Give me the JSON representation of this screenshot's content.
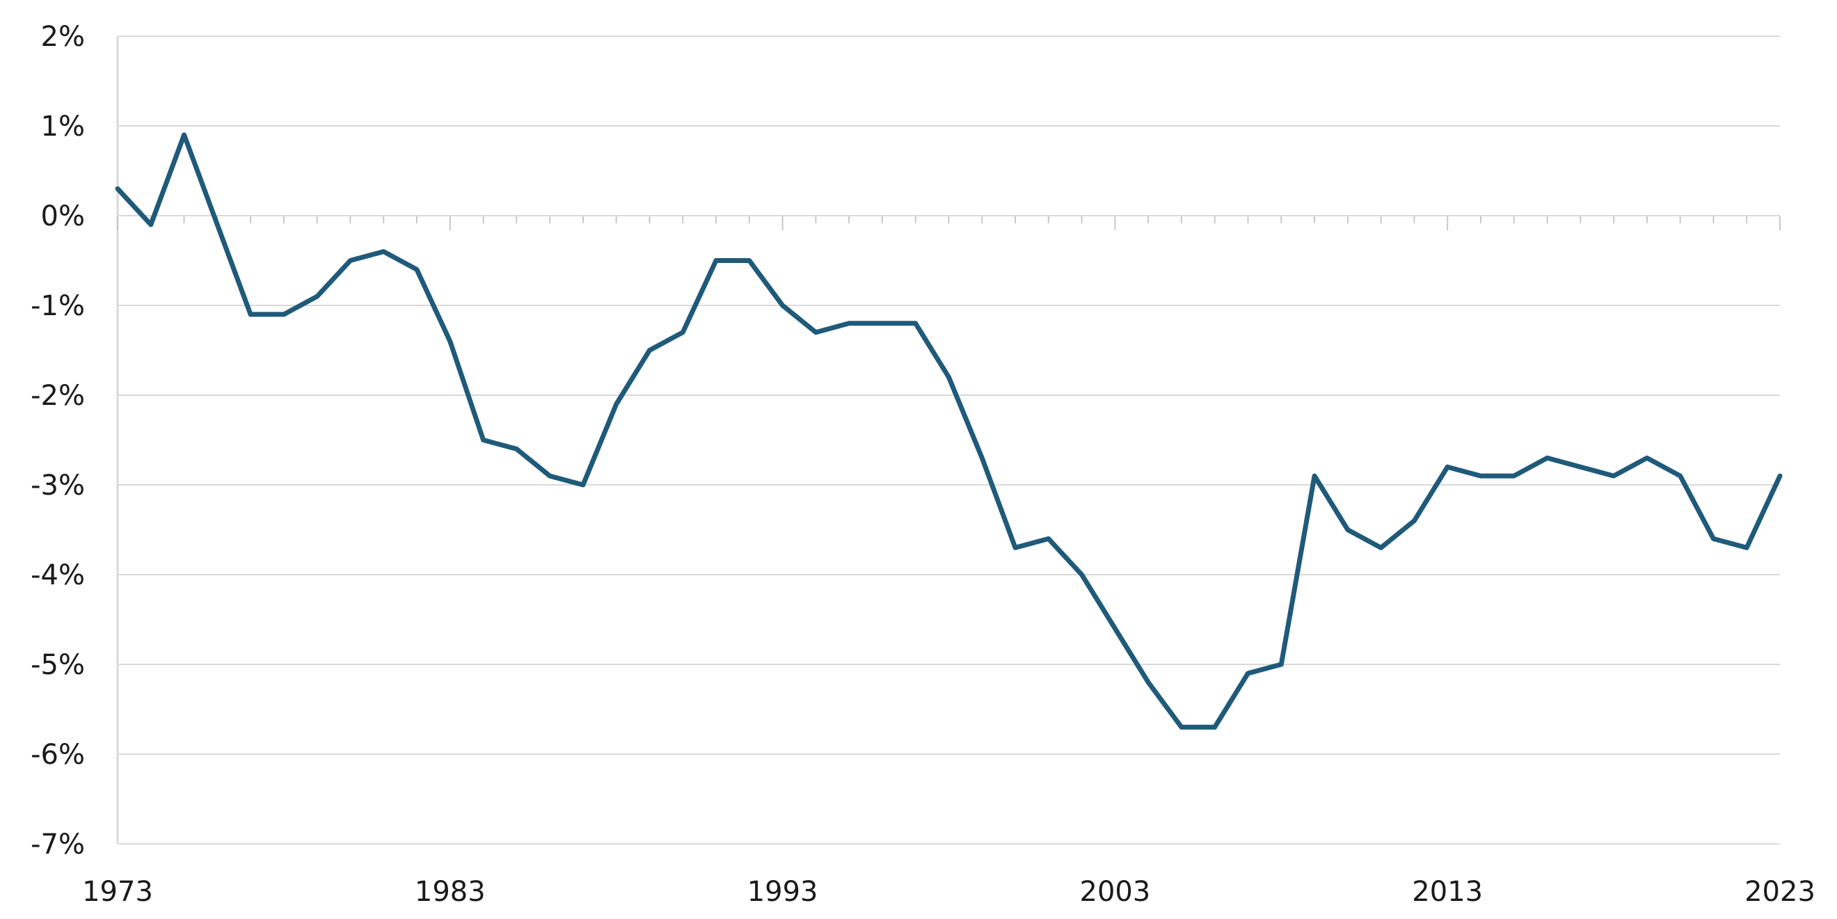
{
  "chart_data": {
    "type": "line",
    "title": "",
    "xlabel": "",
    "ylabel": "",
    "xlim": [
      1973,
      2023
    ],
    "ylim": [
      -7,
      2
    ],
    "grid": true,
    "yticks": [
      2,
      1,
      0,
      -1,
      -2,
      -3,
      -4,
      -5,
      -6,
      -7
    ],
    "ytick_labels": [
      "2%",
      "1%",
      "0%",
      "-1%",
      "-2%",
      "-3%",
      "-4%",
      "-5%",
      "-6%",
      "-7%"
    ],
    "xticks": [
      1973,
      1983,
      1993,
      2003,
      2013,
      2023
    ],
    "xtick_labels": [
      "1973",
      "1983",
      "1993",
      "2003",
      "2013",
      "2023"
    ],
    "line_color": "#1f5a7a",
    "grid_color": "#d9d9d9",
    "series": [
      {
        "x": [
          1973,
          1974,
          1975,
          1976,
          1977,
          1978,
          1979,
          1980,
          1981,
          1982,
          1983,
          1984,
          1985,
          1986,
          1987,
          1988,
          1989,
          1990,
          1991,
          1992,
          1993,
          1994,
          1995,
          1996,
          1997,
          1998,
          1999,
          2000,
          2001,
          2002,
          2003,
          2004,
          2005,
          2006,
          2007,
          2008,
          2009,
          2010,
          2011,
          2012,
          2013,
          2014,
          2015,
          2016,
          2017,
          2018,
          2019,
          2020,
          2021,
          2022,
          2023
        ],
        "values": [
          0.3,
          -0.1,
          0.9,
          -0.1,
          -1.1,
          -1.1,
          -0.9,
          -0.5,
          -0.4,
          -0.6,
          -1.4,
          -2.5,
          -2.6,
          -2.9,
          -3.0,
          -2.1,
          -1.5,
          -1.3,
          -0.5,
          -0.5,
          -1.0,
          -1.3,
          -1.2,
          -1.2,
          -1.2,
          -1.8,
          -2.7,
          -3.7,
          -3.6,
          -4.0,
          -4.6,
          -5.2,
          -5.7,
          -5.7,
          -5.1,
          -5.0,
          -2.9,
          -3.5,
          -3.7,
          -3.4,
          -2.8,
          -2.9,
          -2.9,
          -2.7,
          -2.8,
          -2.9,
          -2.7,
          -2.9,
          -3.6,
          -3.7,
          -2.9
        ]
      }
    ]
  }
}
